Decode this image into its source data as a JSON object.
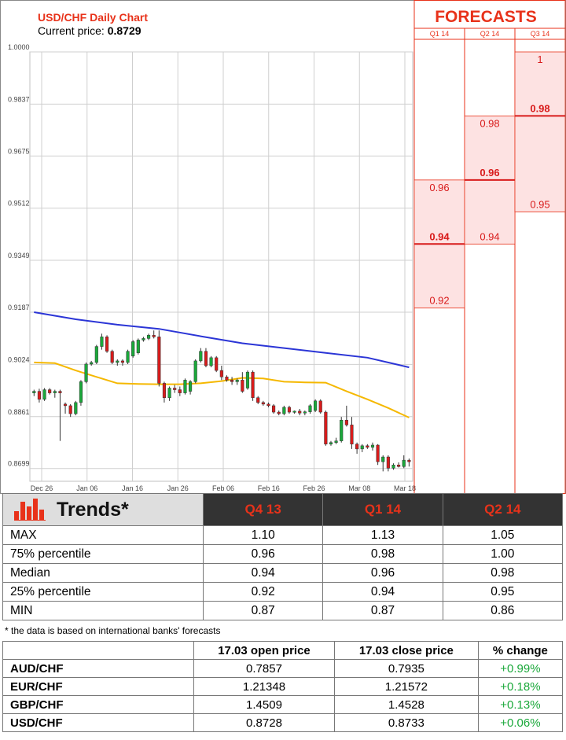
{
  "header": {
    "title": "USD/CHF Daily Chart",
    "price_label": "Current price:",
    "price_value": "0.8729"
  },
  "forecast_panel": {
    "title": "FORECASTS",
    "quarters": [
      "Q1 14",
      "Q2 14",
      "Q3 14"
    ],
    "columns": [
      {
        "high": 0.96,
        "median": 0.94,
        "low": 0.92,
        "high_label": "0.96",
        "median_label": "0.94",
        "low_label": "0.92"
      },
      {
        "high": 0.98,
        "median": 0.96,
        "low": 0.94,
        "high_label": "0.98",
        "median_label": "0.96",
        "low_label": "0.94"
      },
      {
        "high": 1.0,
        "median": 0.98,
        "low": 0.95,
        "high_label": "1",
        "median_label": "0.98",
        "low_label": "0.95"
      }
    ]
  },
  "chart_data": {
    "type": "candlestick",
    "title": "USD/CHF Daily Chart",
    "ylim": [
      0.8659,
      1.0
    ],
    "y_ticks": [
      "1.0000",
      "0.9837",
      "0.9675",
      "0.9512",
      "0.9349",
      "0.9187",
      "0.9024",
      "0.8861",
      "0.8699"
    ],
    "y_tick_values": [
      1.0,
      0.9837,
      0.9675,
      0.9512,
      0.9349,
      0.9187,
      0.9024,
      0.8861,
      0.8699
    ],
    "x_ticks": [
      "Dec 26",
      "Jan 06",
      "Jan 16",
      "Jan 26",
      "Feb 06",
      "Feb 16",
      "Feb 26",
      "Mar 08",
      "Mar 18"
    ],
    "grid": true,
    "candles": [
      {
        "o": 0.8935,
        "h": 0.8945,
        "l": 0.8925,
        "c": 0.894
      },
      {
        "o": 0.894,
        "h": 0.8948,
        "l": 0.8905,
        "c": 0.8915
      },
      {
        "o": 0.8915,
        "h": 0.895,
        "l": 0.891,
        "c": 0.8945
      },
      {
        "o": 0.8945,
        "h": 0.895,
        "l": 0.893,
        "c": 0.8935
      },
      {
        "o": 0.8935,
        "h": 0.8945,
        "l": 0.892,
        "c": 0.894
      },
      {
        "o": 0.894,
        "h": 0.8945,
        "l": 0.8785,
        "c": 0.8935
      },
      {
        "o": 0.89,
        "h": 0.8905,
        "l": 0.887,
        "c": 0.8895
      },
      {
        "o": 0.8895,
        "h": 0.89,
        "l": 0.886,
        "c": 0.887
      },
      {
        "o": 0.887,
        "h": 0.891,
        "l": 0.8865,
        "c": 0.8905
      },
      {
        "o": 0.8905,
        "h": 0.8975,
        "l": 0.8895,
        "c": 0.897
      },
      {
        "o": 0.897,
        "h": 0.903,
        "l": 0.8965,
        "c": 0.9025
      },
      {
        "o": 0.9025,
        "h": 0.9035,
        "l": 0.902,
        "c": 0.903
      },
      {
        "o": 0.903,
        "h": 0.9085,
        "l": 0.9025,
        "c": 0.908
      },
      {
        "o": 0.908,
        "h": 0.912,
        "l": 0.907,
        "c": 0.911
      },
      {
        "o": 0.911,
        "h": 0.9115,
        "l": 0.906,
        "c": 0.9065
      },
      {
        "o": 0.9065,
        "h": 0.907,
        "l": 0.9025,
        "c": 0.903
      },
      {
        "o": 0.903,
        "h": 0.904,
        "l": 0.902,
        "c": 0.9035
      },
      {
        "o": 0.9035,
        "h": 0.904,
        "l": 0.902,
        "c": 0.903
      },
      {
        "o": 0.903,
        "h": 0.907,
        "l": 0.9025,
        "c": 0.9065
      },
      {
        "o": 0.905,
        "h": 0.91,
        "l": 0.9045,
        "c": 0.9095
      },
      {
        "o": 0.906,
        "h": 0.9105,
        "l": 0.9055,
        "c": 0.91
      },
      {
        "o": 0.91,
        "h": 0.911,
        "l": 0.9095,
        "c": 0.9105
      },
      {
        "o": 0.9105,
        "h": 0.912,
        "l": 0.91,
        "c": 0.9115
      },
      {
        "o": 0.9115,
        "h": 0.913,
        "l": 0.9105,
        "c": 0.911
      },
      {
        "o": 0.911,
        "h": 0.913,
        "l": 0.8955,
        "c": 0.8965
      },
      {
        "o": 0.8965,
        "h": 0.897,
        "l": 0.8905,
        "c": 0.892
      },
      {
        "o": 0.892,
        "h": 0.8955,
        "l": 0.891,
        "c": 0.895
      },
      {
        "o": 0.895,
        "h": 0.896,
        "l": 0.8935,
        "c": 0.8945
      },
      {
        "o": 0.8945,
        "h": 0.8955,
        "l": 0.8925,
        "c": 0.8935
      },
      {
        "o": 0.8935,
        "h": 0.898,
        "l": 0.893,
        "c": 0.8975
      },
      {
        "o": 0.894,
        "h": 0.8975,
        "l": 0.893,
        "c": 0.897
      },
      {
        "o": 0.897,
        "h": 0.904,
        "l": 0.8965,
        "c": 0.9035
      },
      {
        "o": 0.9035,
        "h": 0.9075,
        "l": 0.903,
        "c": 0.9065
      },
      {
        "o": 0.9065,
        "h": 0.9075,
        "l": 0.9015,
        "c": 0.902
      },
      {
        "o": 0.902,
        "h": 0.905,
        "l": 0.9015,
        "c": 0.9045
      },
      {
        "o": 0.9045,
        "h": 0.905,
        "l": 0.9,
        "c": 0.9005
      },
      {
        "o": 0.9005,
        "h": 0.902,
        "l": 0.8975,
        "c": 0.8985
      },
      {
        "o": 0.8985,
        "h": 0.899,
        "l": 0.897,
        "c": 0.8975
      },
      {
        "o": 0.8975,
        "h": 0.8985,
        "l": 0.896,
        "c": 0.897
      },
      {
        "o": 0.897,
        "h": 0.898,
        "l": 0.896,
        "c": 0.8975
      },
      {
        "o": 0.8975,
        "h": 0.9,
        "l": 0.8935,
        "c": 0.894
      },
      {
        "o": 0.895,
        "h": 0.9005,
        "l": 0.8945,
        "c": 0.9
      },
      {
        "o": 0.9,
        "h": 0.9005,
        "l": 0.891,
        "c": 0.892
      },
      {
        "o": 0.892,
        "h": 0.8925,
        "l": 0.89,
        "c": 0.8905
      },
      {
        "o": 0.8905,
        "h": 0.891,
        "l": 0.8895,
        "c": 0.89
      },
      {
        "o": 0.89,
        "h": 0.8905,
        "l": 0.889,
        "c": 0.8895
      },
      {
        "o": 0.8895,
        "h": 0.89,
        "l": 0.887,
        "c": 0.8875
      },
      {
        "o": 0.8875,
        "h": 0.888,
        "l": 0.8865,
        "c": 0.887
      },
      {
        "o": 0.887,
        "h": 0.8895,
        "l": 0.8865,
        "c": 0.889
      },
      {
        "o": 0.889,
        "h": 0.8895,
        "l": 0.887,
        "c": 0.8875
      },
      {
        "o": 0.8875,
        "h": 0.888,
        "l": 0.887,
        "c": 0.8878
      },
      {
        "o": 0.8878,
        "h": 0.8885,
        "l": 0.8865,
        "c": 0.8872
      },
      {
        "o": 0.8872,
        "h": 0.888,
        "l": 0.8865,
        "c": 0.8876
      },
      {
        "o": 0.8876,
        "h": 0.89,
        "l": 0.887,
        "c": 0.8895
      },
      {
        "o": 0.888,
        "h": 0.8915,
        "l": 0.8875,
        "c": 0.891
      },
      {
        "o": 0.891,
        "h": 0.8915,
        "l": 0.887,
        "c": 0.8875
      },
      {
        "o": 0.8875,
        "h": 0.888,
        "l": 0.877,
        "c": 0.8775
      },
      {
        "o": 0.8775,
        "h": 0.8785,
        "l": 0.877,
        "c": 0.878
      },
      {
        "o": 0.878,
        "h": 0.8795,
        "l": 0.8775,
        "c": 0.8785
      },
      {
        "o": 0.8785,
        "h": 0.886,
        "l": 0.878,
        "c": 0.885
      },
      {
        "o": 0.885,
        "h": 0.8895,
        "l": 0.883,
        "c": 0.8835
      },
      {
        "o": 0.8835,
        "h": 0.886,
        "l": 0.876,
        "c": 0.8775
      },
      {
        "o": 0.8775,
        "h": 0.878,
        "l": 0.8745,
        "c": 0.876
      },
      {
        "o": 0.876,
        "h": 0.8775,
        "l": 0.875,
        "c": 0.877
      },
      {
        "o": 0.877,
        "h": 0.8775,
        "l": 0.876,
        "c": 0.8765
      },
      {
        "o": 0.8765,
        "h": 0.878,
        "l": 0.8755,
        "c": 0.8772
      },
      {
        "o": 0.8772,
        "h": 0.8775,
        "l": 0.871,
        "c": 0.872
      },
      {
        "o": 0.872,
        "h": 0.874,
        "l": 0.869,
        "c": 0.8735
      },
      {
        "o": 0.8735,
        "h": 0.874,
        "l": 0.869,
        "c": 0.87
      },
      {
        "o": 0.87,
        "h": 0.8715,
        "l": 0.8695,
        "c": 0.871
      },
      {
        "o": 0.871,
        "h": 0.8718,
        "l": 0.8702,
        "c": 0.8705
      },
      {
        "o": 0.8705,
        "h": 0.874,
        "l": 0.87,
        "c": 0.8725
      },
      {
        "o": 0.8725,
        "h": 0.873,
        "l": 0.8705,
        "c": 0.872
      }
    ],
    "series": [
      {
        "color": "#2b35d6",
        "x": [
          0,
          8,
          16,
          24,
          32,
          40,
          48,
          56,
          64,
          72
        ],
        "values": [
          0.9187,
          0.9165,
          0.9148,
          0.9135,
          0.9112,
          0.909,
          0.9075,
          0.906,
          0.9045,
          0.9015
        ]
      },
      {
        "color": "#f5b800",
        "x": [
          0,
          4,
          8,
          12,
          16,
          20,
          24,
          28,
          32,
          36,
          40,
          44,
          48,
          52,
          56,
          60,
          64,
          68,
          72
        ],
        "values": [
          0.903,
          0.9028,
          0.9005,
          0.8985,
          0.8965,
          0.8963,
          0.8962,
          0.8962,
          0.8965,
          0.8972,
          0.8982,
          0.898,
          0.897,
          0.8968,
          0.8967,
          0.894,
          0.8915,
          0.8888,
          0.8858
        ]
      }
    ],
    "up_color": "#1aa83a",
    "down_color": "#d81b1b"
  },
  "trends": {
    "title": "Trends*",
    "columns": [
      "Q4 13",
      "Q1 14",
      "Q2 14"
    ],
    "rows": [
      {
        "label": "MAX",
        "values": [
          "1.10",
          "1.13",
          "1.05"
        ]
      },
      {
        "label": "75% percentile",
        "values": [
          "0.96",
          "0.98",
          "1.00"
        ]
      },
      {
        "label": "Median",
        "values": [
          "0.94",
          "0.96",
          "0.98"
        ]
      },
      {
        "label": "25% percentile",
        "values": [
          "0.92",
          "0.94",
          "0.95"
        ]
      },
      {
        "label": "MIN",
        "values": [
          "0.87",
          "0.87",
          "0.86"
        ]
      }
    ],
    "footnote": "* the data is based on international banks' forecasts"
  },
  "prices": {
    "headers": [
      "17.03 open price",
      "17.03 close price",
      "% change"
    ],
    "rows": [
      {
        "pair": "AUD/CHF",
        "open": "0.7857",
        "close": "0.7935",
        "change": "+0.99%"
      },
      {
        "pair": "EUR/CHF",
        "open": "1.21348",
        "close": "1.21572",
        "change": "+0.18%"
      },
      {
        "pair": "GBP/CHF",
        "open": "1.4509",
        "close": "1.4528",
        "change": "+0.13%"
      },
      {
        "pair": "USD/CHF",
        "open": "0.8728",
        "close": "0.8733",
        "change": "+0.06%"
      }
    ]
  },
  "colors": {
    "accent_red": "#e8321a",
    "forecast_fill": "#fde2e2",
    "grid": "#c8c8c8"
  }
}
